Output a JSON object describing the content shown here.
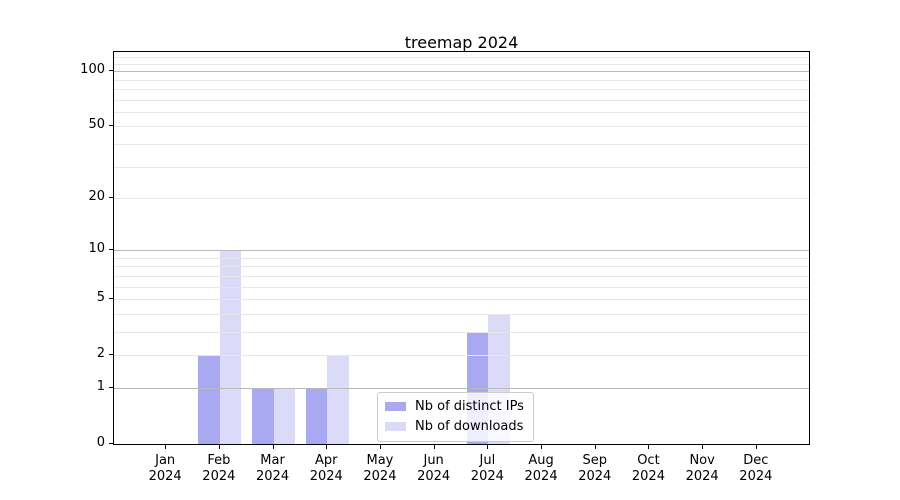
{
  "chart_data": {
    "type": "bar",
    "title": "treemap 2024",
    "categories": [
      "Jan",
      "Feb",
      "Mar",
      "Apr",
      "May",
      "Jun",
      "Jul",
      "Aug",
      "Sep",
      "Oct",
      "Nov",
      "Dec"
    ],
    "year_label": "2024",
    "series": [
      {
        "name": "Nb of distinct IPs",
        "color": "#a9a9f2",
        "values": [
          0,
          2,
          1,
          1,
          0,
          0,
          3,
          0,
          0,
          0,
          0,
          0
        ]
      },
      {
        "name": "Nb of downloads",
        "color": "#dbdbf9",
        "values": [
          0,
          10,
          1,
          2,
          0,
          0,
          4,
          0,
          0,
          0,
          0,
          0
        ]
      }
    ],
    "y_axis": {
      "scale": "log1p",
      "ylim": [
        0,
        127
      ],
      "ticks": [
        0,
        1,
        2,
        5,
        10,
        20,
        50,
        100
      ],
      "tick_labels": [
        "0",
        "1",
        "2",
        "5",
        "10",
        "20",
        "50",
        "100"
      ],
      "major_gridlines": [
        1,
        10,
        100
      ],
      "minor_gridlines": [
        3,
        4,
        6,
        7,
        8,
        9,
        30,
        40,
        60,
        70,
        80,
        90,
        110,
        120
      ]
    },
    "legend": {
      "position": "lower center"
    },
    "grid": true,
    "colors": {
      "major_grid": "#b9b9b9",
      "minor_grid": "#e7e7e7",
      "spine": "#000000",
      "background": "#ffffff"
    }
  }
}
